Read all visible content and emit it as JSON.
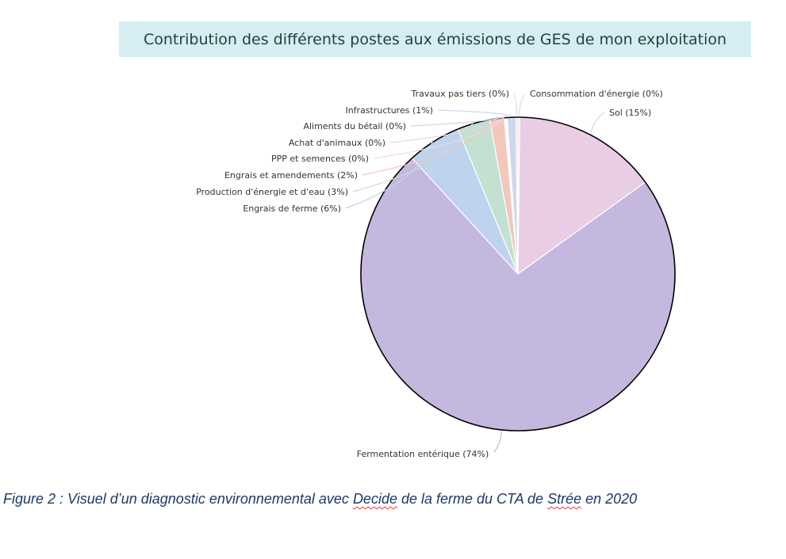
{
  "chart_data": {
    "type": "pie",
    "title": "Contribution des différents postes aux émissions de GES de mon exploitation",
    "start_angle_deg": 0,
    "direction": "clockwise",
    "outline_color": "#000000",
    "slices": [
      {
        "label": "Consommation d'énergie (0%)",
        "value": 0.2,
        "color": "#f6d5cf"
      },
      {
        "label": "Sol (15%)",
        "value": 15.0,
        "color": "#e8cde4"
      },
      {
        "label": "Fermentation entérique (74%)",
        "value": 73.9,
        "color": "#c5b8df"
      },
      {
        "label": "Engrais de ferme (6%)",
        "value": 5.6,
        "color": "#bed3ee"
      },
      {
        "label": "Production d'énergie et d'eau (3%)",
        "value": 3.4,
        "color": "#c3e0d1"
      },
      {
        "label": "Engrais et amendements (2%)",
        "value": 1.5,
        "color": "#f3c7bc"
      },
      {
        "label": "PPP et semences (0%)",
        "value": 0.1,
        "color": "#f7d9d2"
      },
      {
        "label": "Achat d'animaux (0%)",
        "value": 0.1,
        "color": "#ecd3e6"
      },
      {
        "label": "Aliments du bétail (0%)",
        "value": 0.1,
        "color": "#d6d0ea"
      },
      {
        "label": "Infrastructures (1%)",
        "value": 0.9,
        "color": "#cfd7ec"
      },
      {
        "label": "Travaux pas tiers (0%)",
        "value": 0.2,
        "color": "#d4e6dc"
      }
    ]
  },
  "caption": {
    "prefix": "Figure 2 : Visuel d’un diagnostic environnemental avec ",
    "word1": "Decide",
    "middle": " de la ferme du CTA de ",
    "word2": "Strée",
    "suffix": " en 2020"
  }
}
